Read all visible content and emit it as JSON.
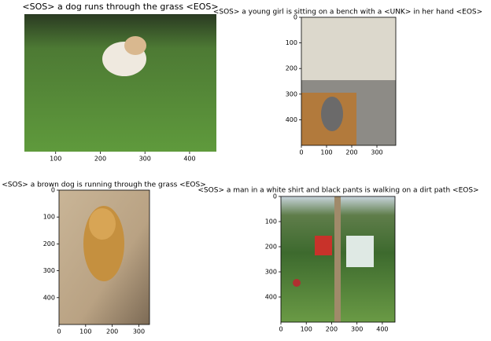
{
  "chart_data": [
    {
      "type": "image",
      "title": "<SOS> a dog runs through the grass <EOS>",
      "xlim": [
        30,
        460
      ],
      "xticks": [
        100,
        200,
        300,
        400
      ]
    },
    {
      "type": "image",
      "title": "<SOS> a young girl is sitting on a bench with a <UNK> in her hand <EOS>",
      "xlim": [
        0,
        375
      ],
      "xticks": [
        0,
        100,
        200,
        300
      ],
      "ylim": [
        500,
        0
      ],
      "yticks": [
        0,
        100,
        200,
        300,
        400
      ]
    },
    {
      "type": "image",
      "title": "<SOS> a brown dog is running through the grass <EOS>",
      "xlim": [
        0,
        340
      ],
      "xticks": [
        0,
        100,
        200,
        300
      ],
      "ylim": [
        500,
        0
      ],
      "yticks": [
        0,
        100,
        200,
        300,
        400
      ]
    },
    {
      "type": "image",
      "title": "<SOS> a man in a white shirt and black pants is walking on a dirt path <EOS>",
      "xlim": [
        0,
        450
      ],
      "xticks": [
        0,
        100,
        200,
        300,
        400
      ],
      "ylim": [
        500,
        0
      ],
      "yticks": [
        0,
        100,
        200,
        300,
        400
      ]
    }
  ]
}
